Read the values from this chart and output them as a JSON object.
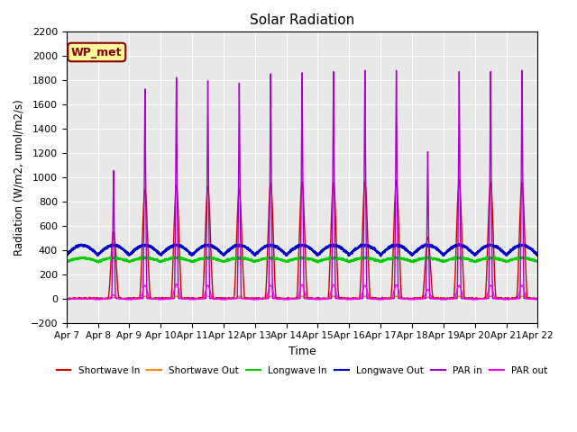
{
  "title": "Solar Radiation",
  "ylabel": "Radiation (W/m2, umol/m2/s)",
  "xlabel": "Time",
  "ylim": [
    -200,
    2200
  ],
  "xlim": [
    0,
    15
  ],
  "xtick_labels": [
    "Apr 7",
    "Apr 8",
    "Apr 9",
    "Apr 10",
    "Apr 11",
    "Apr 12",
    "Apr 13",
    "Apr 14",
    "Apr 15",
    "Apr 16",
    "Apr 17",
    "Apr 18",
    "Apr 19",
    "Apr 20",
    "Apr 21",
    "Apr 22"
  ],
  "xtick_positions": [
    0,
    1,
    2,
    3,
    4,
    5,
    6,
    7,
    8,
    9,
    10,
    11,
    12,
    13,
    14,
    15
  ],
  "bg_color": "#e8e8e8",
  "annotation_text": "WP_met",
  "annotation_bg": "#ffff99",
  "annotation_border": "#8b0000",
  "sw_in_peaks": [
    0,
    550,
    900,
    930,
    920,
    900,
    950,
    960,
    960,
    960,
    970,
    500,
    980,
    960,
    960,
    960
  ],
  "sw_out_peaks": [
    0,
    10,
    20,
    20,
    20,
    20,
    20,
    20,
    20,
    20,
    20,
    10,
    20,
    20,
    20,
    20
  ],
  "par_in_peaks": [
    0,
    1100,
    1800,
    1900,
    1870,
    1850,
    1930,
    1940,
    1950,
    1960,
    1960,
    1260,
    1950,
    1950,
    1960,
    2000
  ],
  "par_out_peaks": [
    0,
    30,
    110,
    120,
    110,
    5,
    110,
    115,
    115,
    110,
    115,
    75,
    110,
    110,
    110,
    110
  ],
  "lw_in_base": 305,
  "lw_out_base": 360,
  "legend_entries": [
    {
      "label": "Shortwave In",
      "color": "#cc0000"
    },
    {
      "label": "Shortwave Out",
      "color": "#ff8800"
    },
    {
      "label": "Longwave In",
      "color": "#00cc00"
    },
    {
      "label": "Longwave Out",
      "color": "#0000cc"
    },
    {
      "label": "PAR in",
      "color": "#aa00cc"
    },
    {
      "label": "PAR out",
      "color": "#ff00ff"
    }
  ]
}
